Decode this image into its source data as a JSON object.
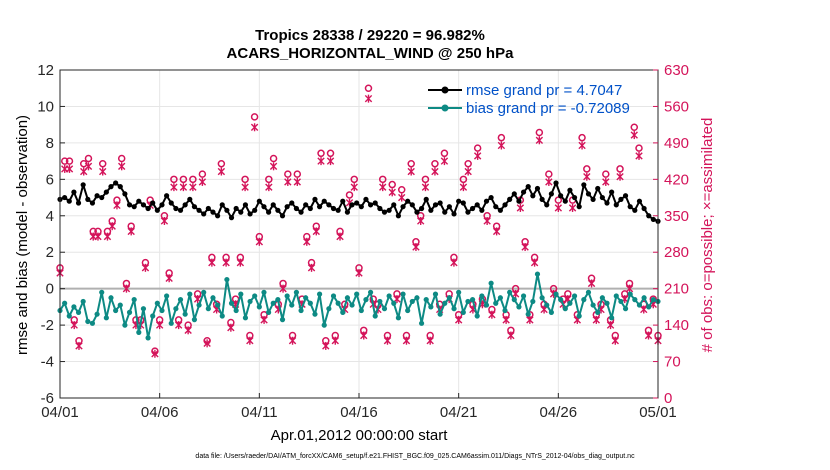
{
  "chart_data": {
    "type": "line",
    "title_line1": "Tropics 28338 / 29220 = 96.982%",
    "title_line2": "ACARS_HORIZONTAL_WIND @ 250 hPa",
    "xlabel": "Apr.01,2012 00:00:00 start",
    "ylabel_left": "rmse and bias (model - observation)",
    "ylabel_right": "# of obs: o=possible; ×=assimilated",
    "footer": "data file: /Users/raeder/DAI/ATM_forcXX/CAM6_setup/f.e21.FHIST_BGC.f09_025.CAM6assim.011/Diags_NTrS_2012-04/obs_diag_output.nc",
    "xlim": [
      0,
      30
    ],
    "ylim_left": [
      -6,
      12
    ],
    "ylim_right": [
      0,
      630
    ],
    "x_ticks": [
      0,
      5,
      10,
      15,
      20,
      25,
      30
    ],
    "x_tick_labels": [
      "04/01",
      "04/06",
      "04/11",
      "04/16",
      "04/21",
      "04/26",
      "05/01"
    ],
    "y_left_ticks": [
      -6,
      -4,
      -2,
      0,
      2,
      4,
      6,
      8,
      10,
      12
    ],
    "y_left_tick_labels": [
      "-6",
      "-4",
      "-2",
      "0",
      "2",
      "4",
      "6",
      "8",
      "10",
      "12"
    ],
    "y_right_ticks": [
      0,
      70,
      140,
      210,
      280,
      350,
      420,
      490,
      560,
      630
    ],
    "y_right_tick_labels": [
      "0",
      "70",
      "140",
      "210",
      "280",
      "350",
      "420",
      "490",
      "560",
      "630"
    ],
    "grid": true,
    "zero_line": 0,
    "legend_position": "top-right",
    "series": [
      {
        "name": "rmse grand pr = 4.7047",
        "color": "#000000",
        "values": [
          4.9,
          5.0,
          4.8,
          5.3,
          4.7,
          5.7,
          4.9,
          4.7,
          5.1,
          5.0,
          5.3,
          5.6,
          5.8,
          5.6,
          5.2,
          4.6,
          4.5,
          4.8,
          4.6,
          4.4,
          4.7,
          4.3,
          4.6,
          5.1,
          4.7,
          4.4,
          4.3,
          4.6,
          4.9,
          4.5,
          4.3,
          4.1,
          4.4,
          4.2,
          4.0,
          4.6,
          4.3,
          3.9,
          4.4,
          4.2,
          4.6,
          4.1,
          4.3,
          4.8,
          4.5,
          4.2,
          4.6,
          4.3,
          4.0,
          4.5,
          4.7,
          4.4,
          4.2,
          4.6,
          4.4,
          4.9,
          4.5,
          4.8,
          4.6,
          4.4,
          4.3,
          4.8,
          4.2,
          4.6,
          4.7,
          4.5,
          4.9,
          4.6,
          4.7,
          4.4,
          4.2,
          4.3,
          4.6,
          4.0,
          4.5,
          4.8,
          4.6,
          4.2,
          4.4,
          4.9,
          4.3,
          4.6,
          4.7,
          4.2,
          4.5,
          4.1,
          4.8,
          4.7,
          4.2,
          4.4,
          4.6,
          4.3,
          4.8,
          5.0,
          4.5,
          4.3,
          4.6,
          4.9,
          5.2,
          4.8,
          5.3,
          5.6,
          5.1,
          5.5,
          4.9,
          4.6,
          5.2,
          5.8,
          5.1,
          4.8,
          5.4,
          5.0,
          4.5,
          5.7,
          5.2,
          4.9,
          5.5,
          5.0,
          4.7,
          5.3,
          4.6,
          4.9,
          5.1,
          4.5,
          4.3,
          4.8,
          4.4,
          4.0,
          3.8,
          3.7
        ],
        "x_range": [
          0,
          30
        ]
      },
      {
        "name": "bias grand pr = -0.72089",
        "color": "#0d8a84",
        "values": [
          -1.2,
          -0.8,
          -1.5,
          -1.0,
          -1.3,
          -0.7,
          -1.8,
          -1.9,
          -1.4,
          -0.2,
          -1.6,
          -0.5,
          -1.2,
          -0.9,
          -2.0,
          -1.3,
          -0.6,
          -2.4,
          -1.1,
          -2.7,
          -1.5,
          -0.8,
          -1.2,
          -0.4,
          -1.9,
          -1.1,
          -0.6,
          -1.4,
          -0.3,
          -1.7,
          -0.9,
          -0.2,
          -1.1,
          -0.5,
          -0.9,
          -1.5,
          0.5,
          -0.8,
          -1.2,
          -0.3,
          -1.6,
          -0.7,
          -0.4,
          -1.0,
          -0.2,
          -1.3,
          -0.8,
          -0.6,
          -1.7,
          -0.4,
          -0.9,
          -0.2,
          -1.2,
          -0.5,
          -0.8,
          -1.4,
          -0.3,
          -2.0,
          -1.1,
          -0.4,
          -0.8,
          -1.3,
          -0.5,
          -0.9,
          -0.3,
          -1.2,
          -0.6,
          -0.2,
          -1.5,
          -0.7,
          -1.1,
          -0.4,
          -0.8,
          -1.6,
          -0.3,
          -1.2,
          -0.7,
          -0.5,
          -1.9,
          -0.6,
          -1.0,
          -0.3,
          -1.4,
          -0.8,
          -0.5,
          -1.1,
          -0.2,
          -1.3,
          -0.7,
          -0.6,
          -1.5,
          -0.4,
          -0.9,
          0.3,
          -0.8,
          -0.5,
          -1.2,
          -0.2,
          -0.6,
          -1.0,
          -0.4,
          -1.4,
          -0.7,
          0.8,
          -0.5,
          -0.9,
          -1.3,
          -0.3,
          -0.6,
          -1.1,
          -0.8,
          -0.4,
          -1.5,
          -0.6,
          -0.2,
          -0.9,
          -1.3,
          -0.5,
          -0.8,
          -1.6,
          -0.4,
          -0.7,
          -1.1,
          -0.3,
          -0.6,
          -0.9,
          -0.5,
          -1.0,
          -0.6,
          -0.7
        ],
        "x_range": [
          0,
          30
        ]
      }
    ],
    "obs_possible": {
      "color": "#d4145a",
      "values": [
        250,
        455,
        455,
        150,
        110,
        450,
        460,
        320,
        320,
        450,
        320,
        340,
        380,
        460,
        220,
        330,
        150,
        150,
        260,
        380,
        90,
        150,
        350,
        240,
        420,
        150,
        420,
        140,
        420,
        200,
        430,
        110,
        270,
        180,
        450,
        270,
        145,
        190,
        270,
        420,
        120,
        540,
        310,
        160,
        420,
        460,
        180,
        220,
        430,
        120,
        430,
        190,
        310,
        260,
        330,
        470,
        110,
        470,
        120,
        320,
        180,
        390,
        420,
        250,
        130,
        595,
        190,
        180,
        420,
        120,
        410,
        200,
        400,
        120,
        450,
        300,
        350,
        420,
        120,
        450,
        180,
        470,
        200,
        270,
        160,
        420,
        450,
        180,
        480,
        190,
        350,
        170,
        330,
        500,
        160,
        130,
        210,
        380,
        300,
        160,
        270,
        510,
        180,
        430,
        210,
        380,
        190,
        200,
        380,
        160,
        500,
        440,
        230,
        160,
        180,
        430,
        150,
        120,
        440,
        200,
        220,
        520,
        480,
        180,
        130,
        190,
        120
      ],
      "x_range": [
        0,
        30
      ]
    },
    "obs_assimilated": {
      "color": "#d4145a",
      "values": [
        240,
        440,
        440,
        140,
        100,
        435,
        445,
        310,
        310,
        435,
        310,
        330,
        370,
        445,
        210,
        320,
        140,
        140,
        250,
        370,
        85,
        140,
        340,
        230,
        405,
        140,
        405,
        130,
        405,
        190,
        415,
        105,
        260,
        170,
        435,
        260,
        135,
        180,
        260,
        405,
        110,
        520,
        300,
        150,
        405,
        445,
        170,
        210,
        415,
        110,
        415,
        180,
        300,
        250,
        320,
        455,
        100,
        455,
        110,
        310,
        170,
        375,
        405,
        240,
        120,
        575,
        180,
        170,
        405,
        110,
        395,
        190,
        385,
        110,
        435,
        290,
        340,
        405,
        110,
        435,
        170,
        455,
        190,
        260,
        150,
        405,
        435,
        170,
        465,
        180,
        340,
        160,
        320,
        485,
        150,
        120,
        200,
        365,
        290,
        150,
        260,
        495,
        170,
        415,
        200,
        365,
        180,
        190,
        365,
        150,
        485,
        425,
        220,
        150,
        170,
        415,
        140,
        110,
        425,
        190,
        210,
        505,
        465,
        170,
        120,
        180,
        110
      ],
      "x_range": [
        0,
        30
      ]
    }
  }
}
